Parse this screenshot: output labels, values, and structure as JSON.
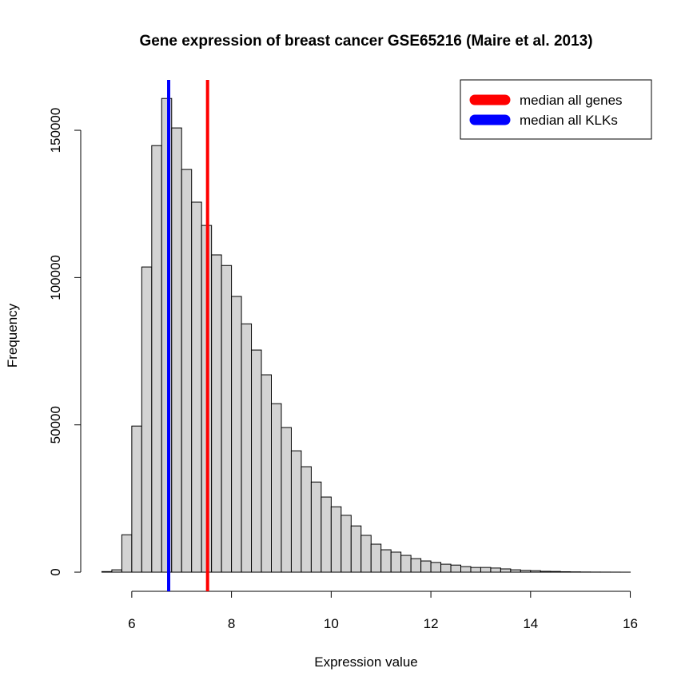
{
  "chart_data": {
    "type": "histogram",
    "title": "Gene expression of breast cancer GSE65216 (Maire et al. 2013)",
    "xlabel": "Expression value",
    "ylabel": "Frequency",
    "bins": [
      5.4,
      5.6,
      5.8,
      6.0,
      6.2,
      6.4,
      6.6,
      6.8,
      7.0,
      7.2,
      7.4,
      7.6,
      7.8,
      8.0,
      8.2,
      8.4,
      8.6,
      8.8,
      9.0,
      9.2,
      9.4,
      9.6,
      9.8,
      10.0,
      10.2,
      10.4,
      10.6,
      10.8,
      11.0,
      11.2,
      11.4,
      11.6,
      11.8,
      12.0,
      12.2,
      12.4,
      12.6,
      12.8,
      13.0,
      13.2,
      13.4,
      13.6,
      13.8,
      14.0,
      14.2,
      14.4,
      14.6,
      14.8,
      15.0,
      15.2,
      15.4,
      15.6,
      15.8,
      16.0
    ],
    "counts": [
      200,
      800,
      12700,
      49600,
      103600,
      144800,
      160800,
      150800,
      136700,
      125600,
      117700,
      107700,
      104100,
      93600,
      84300,
      75400,
      67000,
      57200,
      49100,
      41200,
      35800,
      30600,
      25500,
      22200,
      19300,
      15700,
      12500,
      9500,
      7600,
      6800,
      5700,
      4600,
      3800,
      3300,
      2700,
      2400,
      1900,
      1600,
      1600,
      1400,
      1100,
      800,
      600,
      500,
      300,
      250,
      150,
      100,
      60,
      40,
      30,
      20,
      10
    ],
    "color": "#d3d3d3",
    "lines": [
      {
        "name": "median all genes",
        "color": "#ff0000",
        "value": 7.52
      },
      {
        "name": "median all KLKs",
        "color": "#0000ff",
        "value": 6.74
      }
    ],
    "legend": "top-right",
    "xlim": [
      4.976,
      16.424
    ],
    "ylim": [
      -6500,
      167100
    ],
    "xticks": [
      6,
      8,
      10,
      12,
      14,
      16
    ],
    "yticks": [
      0,
      50000,
      100000,
      150000
    ]
  }
}
